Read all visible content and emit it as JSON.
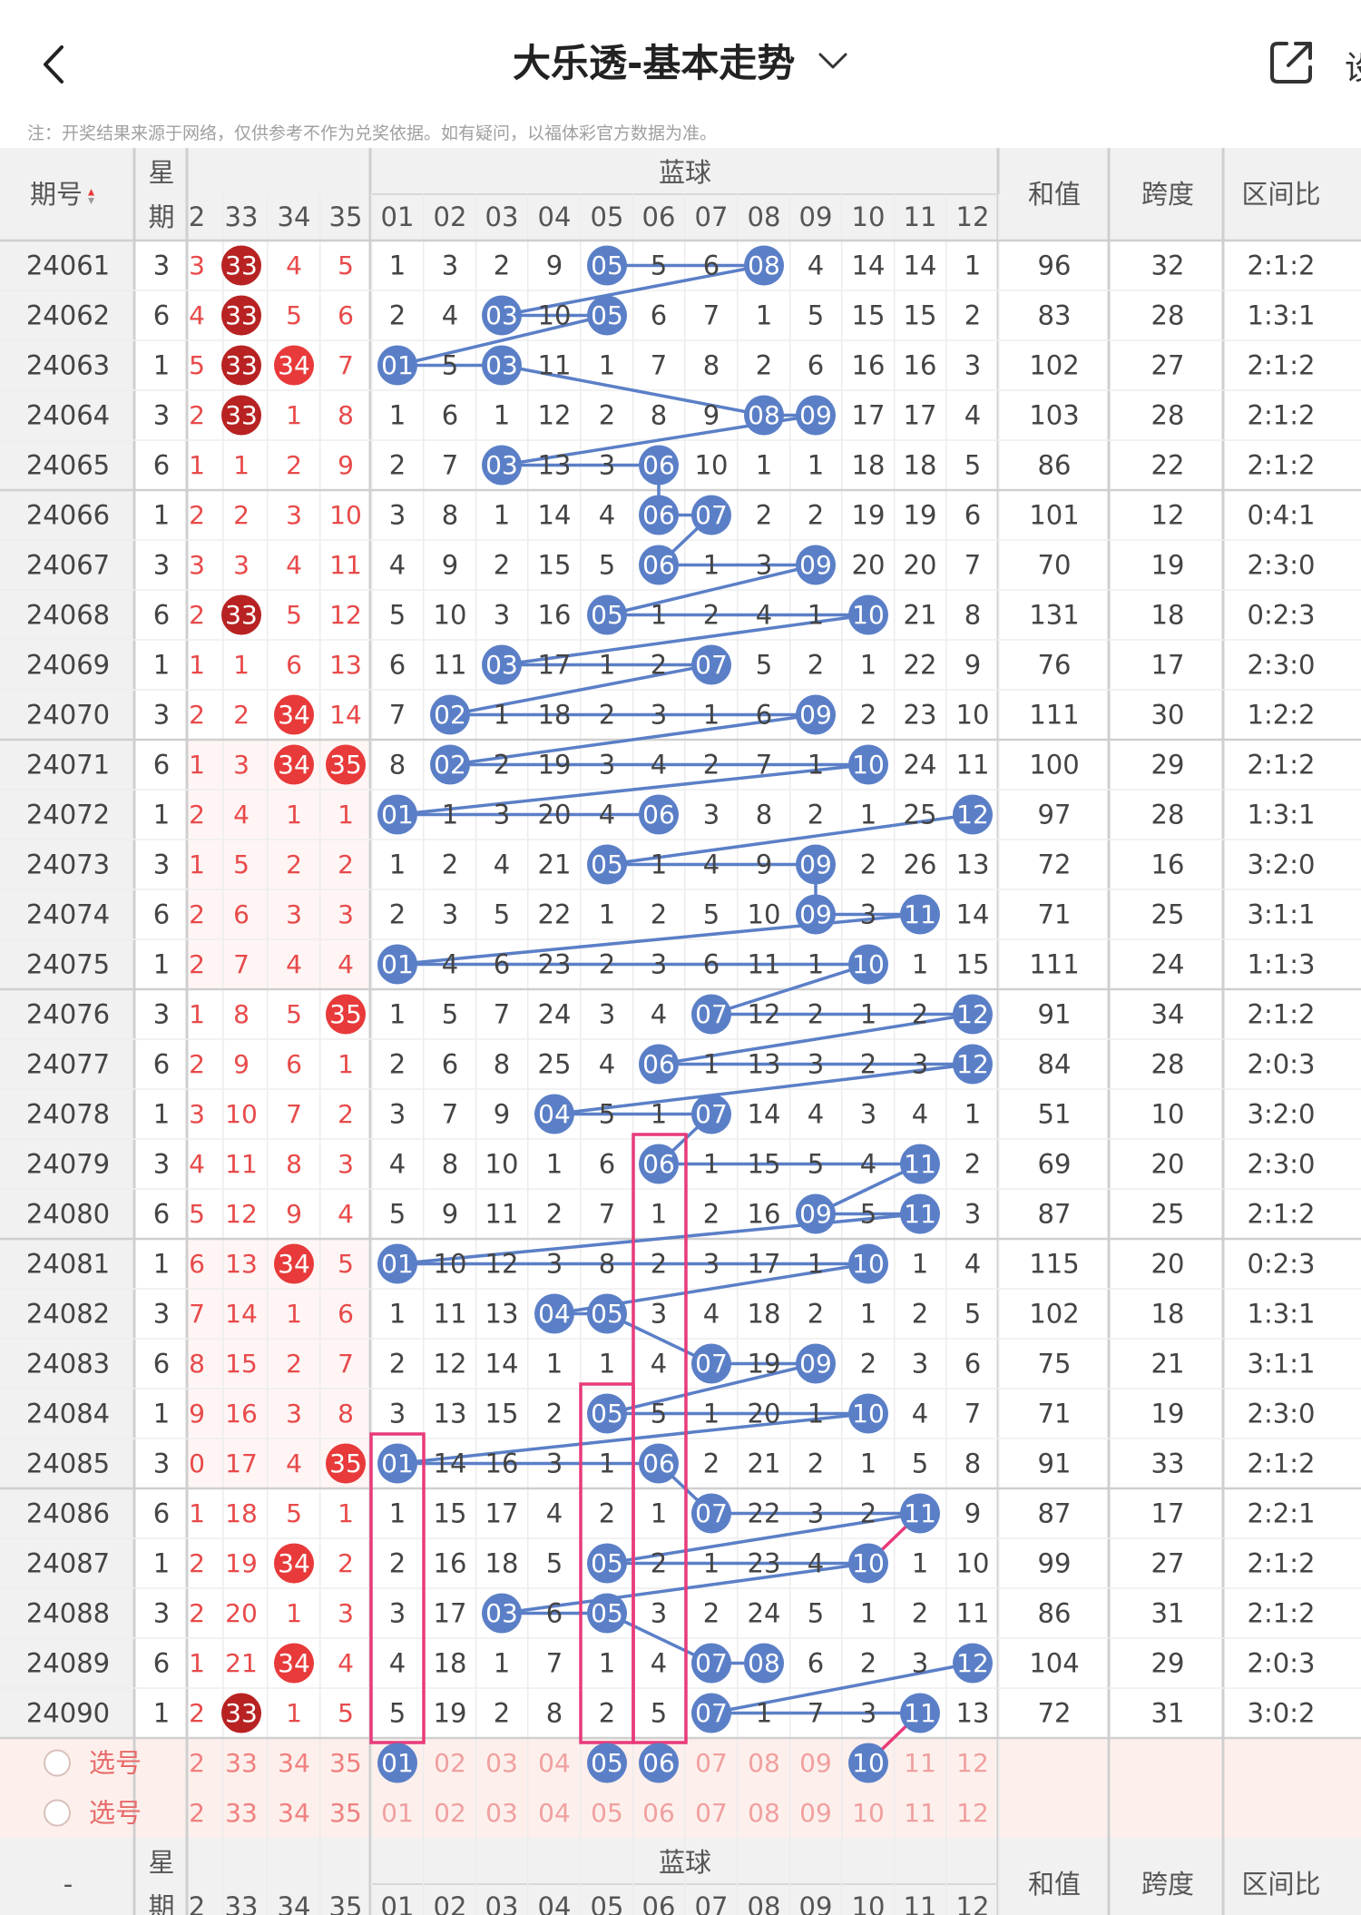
{
  "header": {
    "title": "大乐透-基本走势",
    "more_label": "设"
  },
  "notice": "注：开奖结果来源于网络，仅供参考不作为兑奖依据。如有疑问，以福体彩官方数据为准。",
  "table": {
    "col_issue": "期号",
    "col_week": [
      "星",
      "期"
    ],
    "blue_group": "蓝球",
    "col_sum": "和值",
    "col_span": "跨度",
    "col_ratio": "区间比",
    "red_headers": [
      "2",
      "33",
      "34",
      "35"
    ],
    "blue_headers": [
      "01",
      "02",
      "03",
      "04",
      "05",
      "06",
      "07",
      "08",
      "09",
      "10",
      "11",
      "12"
    ],
    "rows": [
      {
        "issue": "24061",
        "week": "3",
        "red": [
          "3",
          "33",
          "4",
          "5"
        ],
        "blue": [
          "1",
          "3",
          "2",
          "9",
          "05",
          "5",
          "6",
          "08",
          "4",
          "14",
          "14",
          "1"
        ],
        "sum": "96",
        "span": "32",
        "ratio": "2:1:2"
      },
      {
        "issue": "24062",
        "week": "6",
        "red": [
          "4",
          "33",
          "5",
          "6"
        ],
        "blue": [
          "2",
          "4",
          "03",
          "10",
          "05",
          "6",
          "7",
          "1",
          "5",
          "15",
          "15",
          "2"
        ],
        "sum": "83",
        "span": "28",
        "ratio": "1:3:1"
      },
      {
        "issue": "24063",
        "week": "1",
        "red": [
          "5",
          "33",
          "34",
          "7"
        ],
        "blue": [
          "01",
          "5",
          "03",
          "11",
          "1",
          "7",
          "8",
          "2",
          "6",
          "16",
          "16",
          "3"
        ],
        "sum": "102",
        "span": "27",
        "ratio": "2:1:2"
      },
      {
        "issue": "24064",
        "week": "3",
        "red": [
          "2",
          "33",
          "1",
          "8"
        ],
        "blue": [
          "1",
          "6",
          "1",
          "12",
          "2",
          "8",
          "9",
          "08",
          "09",
          "17",
          "17",
          "4"
        ],
        "sum": "103",
        "span": "28",
        "ratio": "2:1:2"
      },
      {
        "issue": "24065",
        "week": "6",
        "red": [
          "1",
          "1",
          "2",
          "9"
        ],
        "blue": [
          "2",
          "7",
          "03",
          "13",
          "3",
          "06",
          "10",
          "1",
          "1",
          "18",
          "18",
          "5"
        ],
        "sum": "86",
        "span": "22",
        "ratio": "2:1:2"
      },
      {
        "issue": "24066",
        "week": "1",
        "red": [
          "2",
          "2",
          "3",
          "10"
        ],
        "blue": [
          "3",
          "8",
          "1",
          "14",
          "4",
          "06",
          "07",
          "2",
          "2",
          "19",
          "19",
          "6"
        ],
        "sum": "101",
        "span": "12",
        "ratio": "0:4:1"
      },
      {
        "issue": "24067",
        "week": "3",
        "red": [
          "3",
          "3",
          "4",
          "11"
        ],
        "blue": [
          "4",
          "9",
          "2",
          "15",
          "5",
          "06",
          "1",
          "3",
          "09",
          "20",
          "20",
          "7"
        ],
        "sum": "70",
        "span": "19",
        "ratio": "2:3:0"
      },
      {
        "issue": "24068",
        "week": "6",
        "red": [
          "2",
          "33",
          "5",
          "12"
        ],
        "blue": [
          "5",
          "10",
          "3",
          "16",
          "05",
          "1",
          "2",
          "4",
          "1",
          "10",
          "21",
          "8"
        ],
        "sum": "131",
        "span": "18",
        "ratio": "0:2:3"
      },
      {
        "issue": "24069",
        "week": "1",
        "red": [
          "1",
          "1",
          "6",
          "13"
        ],
        "blue": [
          "6",
          "11",
          "03",
          "17",
          "1",
          "2",
          "07",
          "5",
          "2",
          "1",
          "22",
          "9"
        ],
        "sum": "76",
        "span": "17",
        "ratio": "2:3:0"
      },
      {
        "issue": "24070",
        "week": "3",
        "red": [
          "2",
          "2",
          "34",
          "14"
        ],
        "blue": [
          "7",
          "02",
          "1",
          "18",
          "2",
          "3",
          "1",
          "6",
          "09",
          "2",
          "23",
          "10"
        ],
        "sum": "111",
        "span": "30",
        "ratio": "1:2:2"
      },
      {
        "issue": "24071",
        "week": "6",
        "red": [
          "1",
          "3",
          "34",
          "35"
        ],
        "blue": [
          "8",
          "02",
          "2",
          "19",
          "3",
          "4",
          "2",
          "7",
          "1",
          "10",
          "24",
          "11"
        ],
        "sum": "100",
        "span": "29",
        "ratio": "2:1:2"
      },
      {
        "issue": "24072",
        "week": "1",
        "red": [
          "2",
          "4",
          "1",
          "1"
        ],
        "blue": [
          "01",
          "1",
          "3",
          "20",
          "4",
          "06",
          "3",
          "8",
          "2",
          "1",
          "25",
          "12"
        ],
        "sum": "97",
        "span": "28",
        "ratio": "1:3:1"
      },
      {
        "issue": "24073",
        "week": "3",
        "red": [
          "1",
          "5",
          "2",
          "2"
        ],
        "blue": [
          "1",
          "2",
          "4",
          "21",
          "05",
          "1",
          "4",
          "9",
          "09",
          "2",
          "26",
          "13"
        ],
        "sum": "72",
        "span": "16",
        "ratio": "3:2:0"
      },
      {
        "issue": "24074",
        "week": "6",
        "red": [
          "2",
          "6",
          "3",
          "3"
        ],
        "blue": [
          "2",
          "3",
          "5",
          "22",
          "1",
          "2",
          "5",
          "10",
          "09",
          "3",
          "11",
          "14"
        ],
        "sum": "71",
        "span": "25",
        "ratio": "3:1:1"
      },
      {
        "issue": "24075",
        "week": "1",
        "red": [
          "2",
          "7",
          "4",
          "4"
        ],
        "blue": [
          "01",
          "4",
          "6",
          "23",
          "2",
          "3",
          "6",
          "11",
          "1",
          "10",
          "1",
          "15"
        ],
        "sum": "111",
        "span": "24",
        "ratio": "1:1:3"
      },
      {
        "issue": "24076",
        "week": "3",
        "red": [
          "1",
          "8",
          "5",
          "35"
        ],
        "blue": [
          "1",
          "5",
          "7",
          "24",
          "3",
          "4",
          "07",
          "12",
          "2",
          "1",
          "2",
          "12"
        ],
        "sum": "91",
        "span": "34",
        "ratio": "2:1:2"
      },
      {
        "issue": "24077",
        "week": "6",
        "red": [
          "2",
          "9",
          "6",
          "1"
        ],
        "blue": [
          "2",
          "6",
          "8",
          "25",
          "4",
          "06",
          "1",
          "13",
          "3",
          "2",
          "3",
          "12"
        ],
        "sum": "84",
        "span": "28",
        "ratio": "2:0:3"
      },
      {
        "issue": "24078",
        "week": "1",
        "red": [
          "3",
          "10",
          "7",
          "2"
        ],
        "blue": [
          "3",
          "7",
          "9",
          "04",
          "5",
          "1",
          "07",
          "14",
          "4",
          "3",
          "4",
          "1"
        ],
        "sum": "51",
        "span": "10",
        "ratio": "3:2:0"
      },
      {
        "issue": "24079",
        "week": "3",
        "red": [
          "4",
          "11",
          "8",
          "3"
        ],
        "blue": [
          "4",
          "8",
          "10",
          "1",
          "6",
          "06",
          "1",
          "15",
          "5",
          "4",
          "11",
          "2"
        ],
        "sum": "69",
        "span": "20",
        "ratio": "2:3:0"
      },
      {
        "issue": "24080",
        "week": "6",
        "red": [
          "5",
          "12",
          "9",
          "4"
        ],
        "blue": [
          "5",
          "9",
          "11",
          "2",
          "7",
          "1",
          "2",
          "16",
          "09",
          "5",
          "11",
          "3"
        ],
        "sum": "87",
        "span": "25",
        "ratio": "2:1:2"
      },
      {
        "issue": "24081",
        "week": "1",
        "red": [
          "6",
          "13",
          "34",
          "5"
        ],
        "blue": [
          "01",
          "10",
          "12",
          "3",
          "8",
          "2",
          "3",
          "17",
          "1",
          "10",
          "1",
          "4"
        ],
        "sum": "115",
        "span": "20",
        "ratio": "0:2:3"
      },
      {
        "issue": "24082",
        "week": "3",
        "red": [
          "7",
          "14",
          "1",
          "6"
        ],
        "blue": [
          "1",
          "11",
          "13",
          "04",
          "05",
          "3",
          "4",
          "18",
          "2",
          "1",
          "2",
          "5"
        ],
        "sum": "102",
        "span": "18",
        "ratio": "1:3:1"
      },
      {
        "issue": "24083",
        "week": "6",
        "red": [
          "8",
          "15",
          "2",
          "7"
        ],
        "blue": [
          "2",
          "12",
          "14",
          "1",
          "1",
          "4",
          "07",
          "19",
          "09",
          "2",
          "3",
          "6"
        ],
        "sum": "75",
        "span": "21",
        "ratio": "3:1:1"
      },
      {
        "issue": "24084",
        "week": "1",
        "red": [
          "9",
          "16",
          "3",
          "8"
        ],
        "blue": [
          "3",
          "13",
          "15",
          "2",
          "05",
          "5",
          "1",
          "20",
          "1",
          "10",
          "4",
          "7"
        ],
        "sum": "71",
        "span": "19",
        "ratio": "2:3:0"
      },
      {
        "issue": "24085",
        "week": "3",
        "red": [
          "0",
          "17",
          "4",
          "35"
        ],
        "blue": [
          "01",
          "14",
          "16",
          "3",
          "1",
          "06",
          "2",
          "21",
          "2",
          "1",
          "5",
          "8"
        ],
        "sum": "91",
        "span": "33",
        "ratio": "2:1:2"
      },
      {
        "issue": "24086",
        "week": "6",
        "red": [
          "1",
          "18",
          "5",
          "1"
        ],
        "blue": [
          "1",
          "15",
          "17",
          "4",
          "2",
          "1",
          "07",
          "22",
          "3",
          "2",
          "11",
          "9"
        ],
        "sum": "87",
        "span": "17",
        "ratio": "2:2:1"
      },
      {
        "issue": "24087",
        "week": "1",
        "red": [
          "2",
          "19",
          "34",
          "2"
        ],
        "blue": [
          "2",
          "16",
          "18",
          "5",
          "05",
          "2",
          "1",
          "23",
          "4",
          "10",
          "1",
          "10"
        ],
        "sum": "99",
        "span": "27",
        "ratio": "2:1:2"
      },
      {
        "issue": "24088",
        "week": "3",
        "red": [
          "2",
          "20",
          "1",
          "3"
        ],
        "blue": [
          "3",
          "17",
          "03",
          "6",
          "05",
          "3",
          "2",
          "24",
          "5",
          "1",
          "2",
          "11"
        ],
        "sum": "86",
        "span": "31",
        "ratio": "2:1:2"
      },
      {
        "issue": "24089",
        "week": "6",
        "red": [
          "1",
          "21",
          "34",
          "4"
        ],
        "blue": [
          "4",
          "18",
          "1",
          "7",
          "1",
          "4",
          "07",
          "08",
          "6",
          "2",
          "3",
          "12"
        ],
        "sum": "104",
        "span": "29",
        "ratio": "2:0:3"
      },
      {
        "issue": "24090",
        "week": "1",
        "red": [
          "2",
          "33",
          "1",
          "5"
        ],
        "blue": [
          "5",
          "19",
          "2",
          "8",
          "2",
          "5",
          "07",
          "1",
          "7",
          "3",
          "11",
          "13"
        ],
        "sum": "72",
        "span": "31",
        "ratio": "3:0:2"
      }
    ],
    "pick_label": "选号",
    "pick_rows": [
      {
        "red": [
          "2",
          "33",
          "34",
          "35"
        ],
        "blue": [
          "01",
          "02",
          "03",
          "04",
          "05",
          "06",
          "07",
          "08",
          "09",
          "10",
          "11",
          "12"
        ]
      },
      {
        "red": [
          "2",
          "33",
          "34",
          "35"
        ],
        "blue": [
          "01",
          "02",
          "03",
          "04",
          "05",
          "06",
          "07",
          "08",
          "09",
          "10",
          "11",
          "12"
        ]
      }
    ],
    "footer_issue": "-"
  },
  "colors": {
    "blue_ball": "#5b7fc7",
    "red_ball": "#e83a3a",
    "dark_red_ball": "#b82222",
    "header_bg": "#f1f1f1",
    "pick_bg": "#fdf0ec",
    "red_text": "#e84a4a",
    "pink_line": "#e83a7a"
  }
}
